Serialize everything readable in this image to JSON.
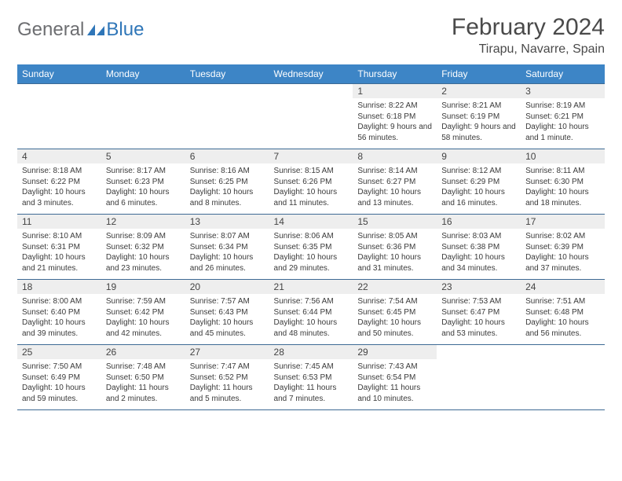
{
  "logo": {
    "part1": "General",
    "part2": "Blue"
  },
  "title": "February 2024",
  "location": "Tirapu, Navarre, Spain",
  "colors": {
    "header_bg": "#3d85c6",
    "header_text": "#ffffff",
    "daynum_bg": "#eeeeee",
    "border": "#3d6a94",
    "logo_gray": "#6d6e71",
    "logo_blue": "#2f76b8"
  },
  "weekdays": [
    "Sunday",
    "Monday",
    "Tuesday",
    "Wednesday",
    "Thursday",
    "Friday",
    "Saturday"
  ],
  "weeks": [
    [
      null,
      null,
      null,
      null,
      {
        "n": "1",
        "sr": "Sunrise: 8:22 AM",
        "ss": "Sunset: 6:18 PM",
        "dl": "Daylight: 9 hours and 56 minutes."
      },
      {
        "n": "2",
        "sr": "Sunrise: 8:21 AM",
        "ss": "Sunset: 6:19 PM",
        "dl": "Daylight: 9 hours and 58 minutes."
      },
      {
        "n": "3",
        "sr": "Sunrise: 8:19 AM",
        "ss": "Sunset: 6:21 PM",
        "dl": "Daylight: 10 hours and 1 minute."
      }
    ],
    [
      {
        "n": "4",
        "sr": "Sunrise: 8:18 AM",
        "ss": "Sunset: 6:22 PM",
        "dl": "Daylight: 10 hours and 3 minutes."
      },
      {
        "n": "5",
        "sr": "Sunrise: 8:17 AM",
        "ss": "Sunset: 6:23 PM",
        "dl": "Daylight: 10 hours and 6 minutes."
      },
      {
        "n": "6",
        "sr": "Sunrise: 8:16 AM",
        "ss": "Sunset: 6:25 PM",
        "dl": "Daylight: 10 hours and 8 minutes."
      },
      {
        "n": "7",
        "sr": "Sunrise: 8:15 AM",
        "ss": "Sunset: 6:26 PM",
        "dl": "Daylight: 10 hours and 11 minutes."
      },
      {
        "n": "8",
        "sr": "Sunrise: 8:14 AM",
        "ss": "Sunset: 6:27 PM",
        "dl": "Daylight: 10 hours and 13 minutes."
      },
      {
        "n": "9",
        "sr": "Sunrise: 8:12 AM",
        "ss": "Sunset: 6:29 PM",
        "dl": "Daylight: 10 hours and 16 minutes."
      },
      {
        "n": "10",
        "sr": "Sunrise: 8:11 AM",
        "ss": "Sunset: 6:30 PM",
        "dl": "Daylight: 10 hours and 18 minutes."
      }
    ],
    [
      {
        "n": "11",
        "sr": "Sunrise: 8:10 AM",
        "ss": "Sunset: 6:31 PM",
        "dl": "Daylight: 10 hours and 21 minutes."
      },
      {
        "n": "12",
        "sr": "Sunrise: 8:09 AM",
        "ss": "Sunset: 6:32 PM",
        "dl": "Daylight: 10 hours and 23 minutes."
      },
      {
        "n": "13",
        "sr": "Sunrise: 8:07 AM",
        "ss": "Sunset: 6:34 PM",
        "dl": "Daylight: 10 hours and 26 minutes."
      },
      {
        "n": "14",
        "sr": "Sunrise: 8:06 AM",
        "ss": "Sunset: 6:35 PM",
        "dl": "Daylight: 10 hours and 29 minutes."
      },
      {
        "n": "15",
        "sr": "Sunrise: 8:05 AM",
        "ss": "Sunset: 6:36 PM",
        "dl": "Daylight: 10 hours and 31 minutes."
      },
      {
        "n": "16",
        "sr": "Sunrise: 8:03 AM",
        "ss": "Sunset: 6:38 PM",
        "dl": "Daylight: 10 hours and 34 minutes."
      },
      {
        "n": "17",
        "sr": "Sunrise: 8:02 AM",
        "ss": "Sunset: 6:39 PM",
        "dl": "Daylight: 10 hours and 37 minutes."
      }
    ],
    [
      {
        "n": "18",
        "sr": "Sunrise: 8:00 AM",
        "ss": "Sunset: 6:40 PM",
        "dl": "Daylight: 10 hours and 39 minutes."
      },
      {
        "n": "19",
        "sr": "Sunrise: 7:59 AM",
        "ss": "Sunset: 6:42 PM",
        "dl": "Daylight: 10 hours and 42 minutes."
      },
      {
        "n": "20",
        "sr": "Sunrise: 7:57 AM",
        "ss": "Sunset: 6:43 PM",
        "dl": "Daylight: 10 hours and 45 minutes."
      },
      {
        "n": "21",
        "sr": "Sunrise: 7:56 AM",
        "ss": "Sunset: 6:44 PM",
        "dl": "Daylight: 10 hours and 48 minutes."
      },
      {
        "n": "22",
        "sr": "Sunrise: 7:54 AM",
        "ss": "Sunset: 6:45 PM",
        "dl": "Daylight: 10 hours and 50 minutes."
      },
      {
        "n": "23",
        "sr": "Sunrise: 7:53 AM",
        "ss": "Sunset: 6:47 PM",
        "dl": "Daylight: 10 hours and 53 minutes."
      },
      {
        "n": "24",
        "sr": "Sunrise: 7:51 AM",
        "ss": "Sunset: 6:48 PM",
        "dl": "Daylight: 10 hours and 56 minutes."
      }
    ],
    [
      {
        "n": "25",
        "sr": "Sunrise: 7:50 AM",
        "ss": "Sunset: 6:49 PM",
        "dl": "Daylight: 10 hours and 59 minutes."
      },
      {
        "n": "26",
        "sr": "Sunrise: 7:48 AM",
        "ss": "Sunset: 6:50 PM",
        "dl": "Daylight: 11 hours and 2 minutes."
      },
      {
        "n": "27",
        "sr": "Sunrise: 7:47 AM",
        "ss": "Sunset: 6:52 PM",
        "dl": "Daylight: 11 hours and 5 minutes."
      },
      {
        "n": "28",
        "sr": "Sunrise: 7:45 AM",
        "ss": "Sunset: 6:53 PM",
        "dl": "Daylight: 11 hours and 7 minutes."
      },
      {
        "n": "29",
        "sr": "Sunrise: 7:43 AM",
        "ss": "Sunset: 6:54 PM",
        "dl": "Daylight: 11 hours and 10 minutes."
      },
      null,
      null
    ]
  ]
}
